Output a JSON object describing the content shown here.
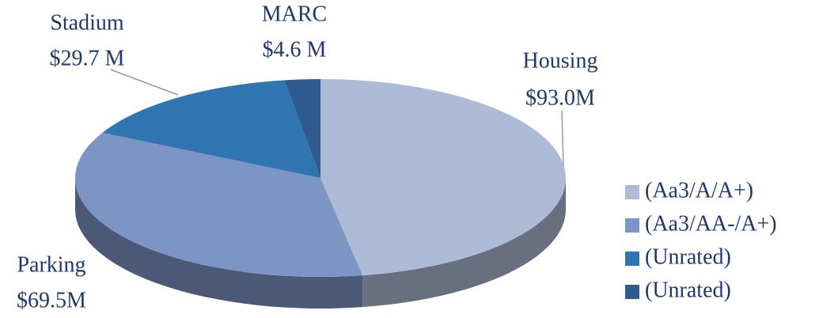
{
  "chart_data": {
    "type": "pie",
    "categories": [
      "Housing",
      "Parking",
      "Stadium",
      "MARC"
    ],
    "values": [
      93.0,
      69.5,
      29.7,
      4.6
    ],
    "value_labels": [
      "$93.0M",
      "$69.5M",
      "$29.7 M",
      "$4.6 M"
    ],
    "colors": [
      "#aebbd6",
      "#7d95c4",
      "#2e75b2",
      "#2f5a8e"
    ],
    "legend": [
      "(Aa3/A/A+)",
      "(Aa3/AA-/A+)",
      "(Unrated)",
      "(Unrated)"
    ]
  }
}
